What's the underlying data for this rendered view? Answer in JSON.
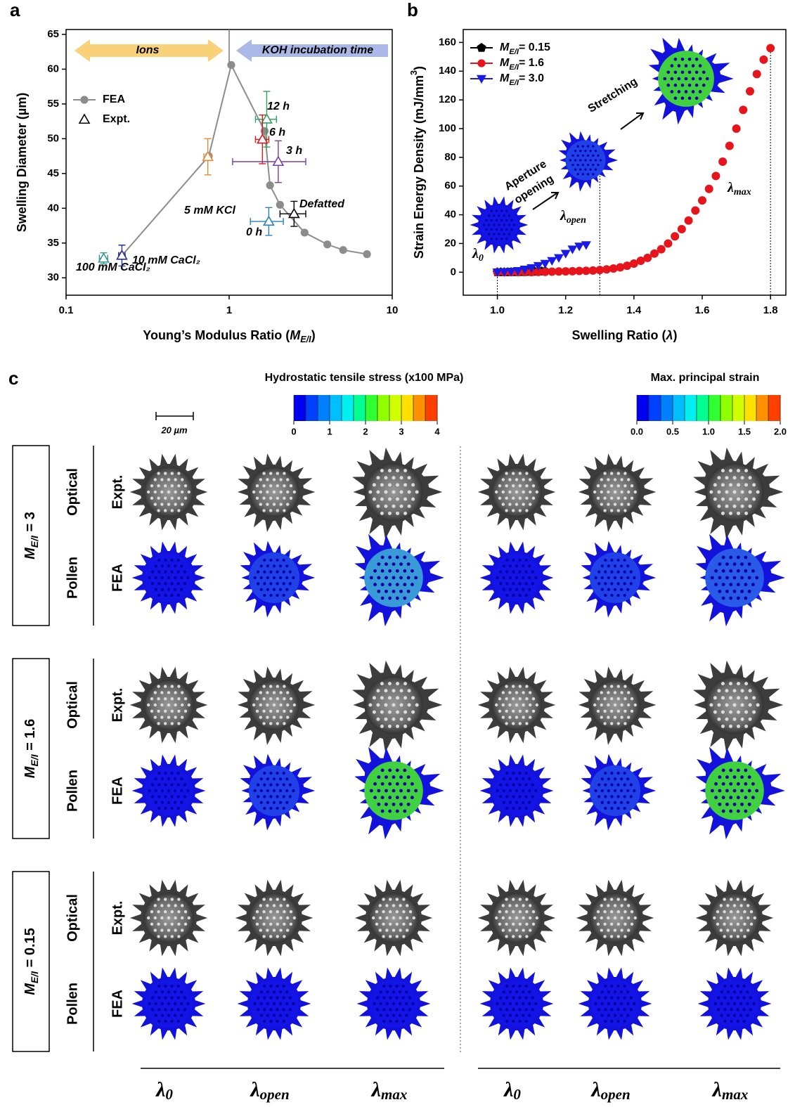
{
  "chart_data": [
    {
      "type": "line",
      "panel": "a",
      "xlabel": "Young’s Modulus Ratio (",
      "xlabel_symbol": "M",
      "xlabel_sub": "E/I",
      "xlabel_end": ")",
      "ylabel": "Swelling Diameter (µm)",
      "xlog": true,
      "xlim": [
        0.1,
        10
      ],
      "xticks": [
        0.1,
        1,
        10
      ],
      "ylim": [
        27.5,
        65.7
      ],
      "yticks": [
        30,
        35,
        40,
        45,
        50,
        55,
        60,
        65
      ],
      "arrow_labels": [
        "Ions",
        "KOH incubation time"
      ],
      "divider_x": 1,
      "legend": "upper left",
      "series": [
        {
          "name": "FEA",
          "color": "#8c8c8c",
          "marker": "circle",
          "line": true,
          "x": [
            0.22,
            0.75,
            1.03,
            1.65,
            1.78,
            2.05,
            2.9,
            4,
            5,
            7
          ],
          "values": [
            33.2,
            47.5,
            60.6,
            51.1,
            43.3,
            40.5,
            36.5,
            34.8,
            34.0,
            33.4
          ]
        },
        {
          "name": "Expt.",
          "color": "#000000",
          "marker": "triangle",
          "line": false,
          "x": [
            0.17,
            0.22,
            0.74,
            1.7,
            1.6,
            2.0,
            1.75,
            2.5
          ],
          "values": [
            32.8,
            33.2,
            47.4,
            52.8,
            49.9,
            46.7,
            38.1,
            39.2
          ],
          "xerr": [
            0.01,
            0.01,
            0.04,
            0.25,
            0.15,
            0.95,
            0.4,
            0.45
          ],
          "yerr": [
            0.8,
            1.5,
            2.6,
            4,
            3.5,
            3,
            2,
            1.8
          ],
          "colors": [
            "#3a9a8f",
            "#2e3192",
            "#e08a3c",
            "#2ca25f",
            "#d7191c",
            "#7b3fa0",
            "#2a7fc1",
            "#000000"
          ],
          "point_labels": [
            "100 mM CaCl₂",
            "10 mM CaCl₂",
            "5 mM KCl",
            "12 h",
            "6 h",
            "3 h",
            "0 h",
            "Defatted"
          ],
          "label_colors": [
            "#000000",
            "#000000",
            "#000000",
            "#2ca25f",
            "#d7191c",
            "#7b3fa0",
            "#2a7fc1",
            "#000000"
          ]
        }
      ]
    },
    {
      "type": "line",
      "panel": "b",
      "xlabel": "Swelling Ratio (",
      "xlabel_symbol": "λ",
      "xlabel_end": ")",
      "ylabel": "Strain Energy Density (mJ/mm",
      "ylabel_sup": "3",
      "ylabel_end": ")",
      "xlim": [
        0.9,
        1.845
      ],
      "xticks": [
        {
          "value": 1,
          "label": "1.0"
        },
        1.2,
        1.4,
        1.6,
        1.8
      ],
      "ylim": [
        -16,
        169
      ],
      "yticks": [
        0,
        20,
        40,
        60,
        80,
        100,
        120,
        140,
        160
      ],
      "legend": "upper left",
      "legend_symbol": "M",
      "legend_sub": "E/I",
      "annotations": [
        "Aperture",
        "opening",
        "Stretching"
      ],
      "stages": [
        {
          "symbol": "λ",
          "sub": "0",
          "x": 1.0
        },
        {
          "symbol": "λ",
          "sub": "open",
          "x": 1.3
        },
        {
          "symbol": "λ",
          "sub": "max",
          "x": 1.8
        }
      ],
      "series": [
        {
          "name": "= 0.15",
          "color": "#000000",
          "marker": "pentagon",
          "line": false,
          "x": [
            1.0,
            1.01,
            1.02,
            1.03,
            1.04,
            1.05,
            1.06,
            1.07,
            1.08,
            1.09,
            1.1,
            1.11,
            1.12,
            1.13,
            1.14
          ],
          "values": [
            0,
            0,
            0,
            0,
            0.1,
            0.1,
            0.1,
            0.2,
            0.2,
            0.3,
            0.3,
            0.4,
            0.5,
            0.6,
            0.7
          ]
        },
        {
          "name": "= 1.6",
          "color": "#e8141c",
          "marker": "circle",
          "line": false,
          "x": [
            1.0,
            1.02,
            1.04,
            1.06,
            1.08,
            1.1,
            1.12,
            1.14,
            1.16,
            1.18,
            1.2,
            1.22,
            1.24,
            1.26,
            1.28,
            1.3,
            1.32,
            1.34,
            1.36,
            1.38,
            1.4,
            1.42,
            1.44,
            1.46,
            1.48,
            1.5,
            1.52,
            1.54,
            1.56,
            1.58,
            1.6,
            1.62,
            1.64,
            1.66,
            1.68,
            1.7,
            1.72,
            1.74,
            1.76,
            1.78,
            1.8
          ],
          "values": [
            0,
            0,
            0,
            0,
            0.1,
            0.1,
            0.2,
            0.3,
            0.4,
            0.5,
            0.6,
            0.7,
            0.9,
            1.0,
            1.2,
            1.5,
            2,
            2.6,
            3.4,
            4.5,
            6,
            8,
            10,
            13,
            16,
            20,
            25,
            30,
            36,
            43,
            50,
            58,
            67,
            77,
            88,
            100,
            113,
            126,
            138,
            148,
            156
          ]
        },
        {
          "name": "= 3.0",
          "color": "#1a1ae6",
          "marker": "triangle-down",
          "line": false,
          "x": [
            1.0,
            1.02,
            1.04,
            1.06,
            1.08,
            1.1,
            1.12,
            1.14,
            1.16,
            1.18,
            1.2,
            1.22,
            1.24,
            1.26
          ],
          "values": [
            0,
            0.2,
            0.5,
            1,
            2,
            3,
            4.5,
            6,
            8,
            10,
            13,
            16,
            18,
            19
          ]
        }
      ]
    }
  ],
  "panel_c": {
    "panel": "c",
    "scale_bar": "20 µm",
    "colorbars": [
      {
        "title": "Hydrostatic tensile stress (x100 MPa)",
        "ticks": [
          0,
          1,
          2,
          3,
          4
        ]
      },
      {
        "title": "Max. principal strain",
        "ticks": [
          {
            "value": 0,
            "label": "0.0"
          },
          0.5,
          {
            "value": 1,
            "label": "1.0"
          },
          1.5,
          {
            "value": 2,
            "label": "2.0"
          }
        ]
      }
    ],
    "groups": [
      {
        "symbol": "M",
        "sub": "E/I",
        "value": " = 3",
        "rows": [
          {
            "kind": "Optical",
            "method": "Expt."
          },
          {
            "kind": "Pollen",
            "method": "FEA"
          }
        ]
      },
      {
        "symbol": "M",
        "sub": "E/I",
        "value": " = 1.6",
        "rows": [
          {
            "kind": "Optical",
            "method": "Expt."
          },
          {
            "kind": "Pollen",
            "method": "FEA"
          }
        ]
      },
      {
        "symbol": "M",
        "sub": "E/I",
        "value": " = 0.15",
        "rows": [
          {
            "kind": "Optical",
            "method": "Expt."
          },
          {
            "kind": "Pollen",
            "method": "FEA"
          }
        ]
      }
    ],
    "columns": [
      {
        "symbol": "λ",
        "sub": "0"
      },
      {
        "symbol": "λ",
        "sub": "open"
      },
      {
        "symbol": "λ",
        "sub": "max"
      },
      {
        "symbol": "λ",
        "sub": "0"
      },
      {
        "symbol": "λ",
        "sub": "open"
      },
      {
        "symbol": "λ",
        "sub": "max"
      }
    ]
  }
}
